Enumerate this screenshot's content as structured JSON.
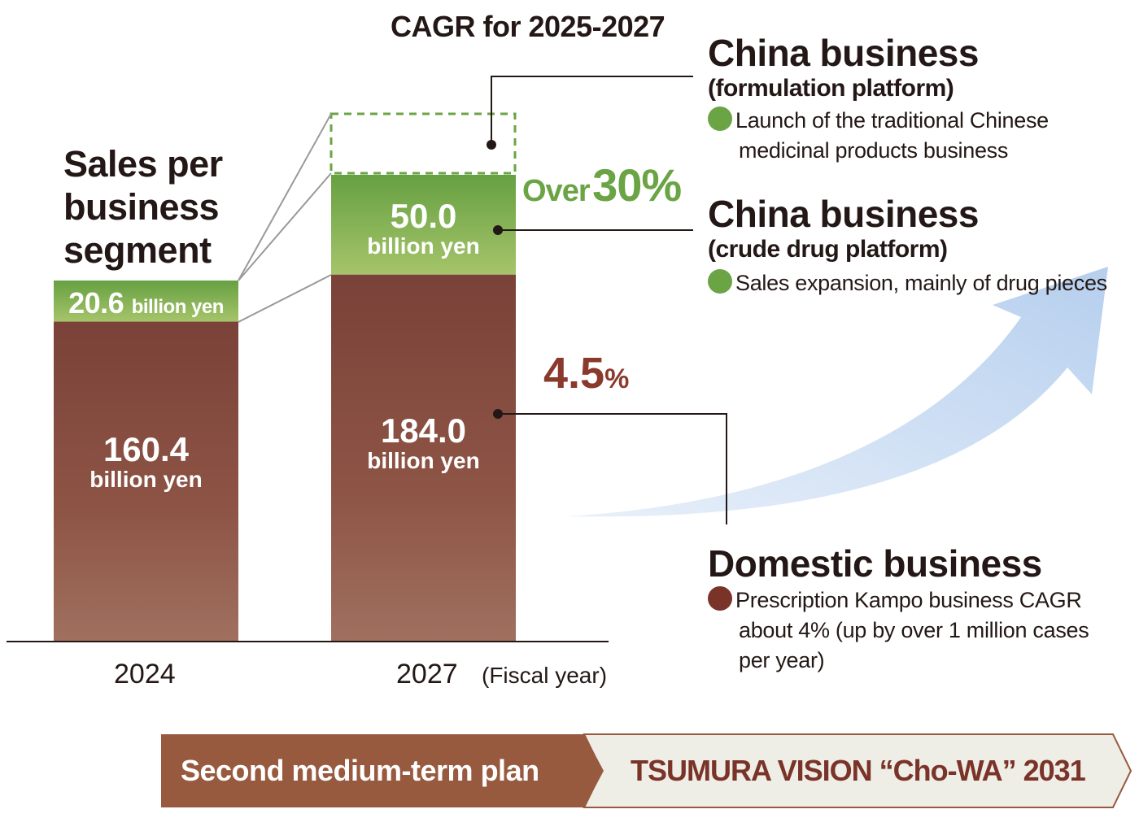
{
  "chart_data": {
    "type": "bar",
    "stacked": true,
    "title": "Sales per business segment",
    "categories": [
      "2024",
      "2027"
    ],
    "x_unit_label": "(Fiscal year)",
    "series": [
      {
        "name": "Domestic business",
        "values": [
          160.4,
          184.0
        ],
        "labels": [
          "160.4",
          "184.0"
        ],
        "color": "#7a4238"
      },
      {
        "name": "China business",
        "values": [
          20.6,
          50.0
        ],
        "labels": [
          "20.6",
          "50.0"
        ],
        "color": "#6aa444"
      }
    ],
    "value_unit": "billion yen",
    "cagr_title": "CAGR for 2025-2027",
    "cagr_china_prefix": "Over",
    "cagr_china": "30%",
    "cagr_domestic": "4.5",
    "cagr_domestic_unit": "%"
  },
  "segments": {
    "china_formulation": {
      "title": "China business",
      "subtitle": "(formulation platform)",
      "bullet": "Launch of the traditional Chinese medicinal products business",
      "bullet_color": "#6aa444"
    },
    "china_crude": {
      "title": "China business",
      "subtitle": "(crude drug platform)",
      "bullet": "Sales expansion, mainly of drug pieces",
      "bullet_color": "#6aa444"
    },
    "domestic": {
      "title": "Domestic business",
      "bullet": "Prescription Kampo business CAGR about 4% (up by over 1 million cases per year)",
      "bullet_color": "#7a3328"
    }
  },
  "footer": {
    "plan": "Second medium-term plan",
    "vision": "TSUMURA VISION “Cho-WA” 2031",
    "plan_color": "#985a3f",
    "vision_color": "#eeede6"
  }
}
